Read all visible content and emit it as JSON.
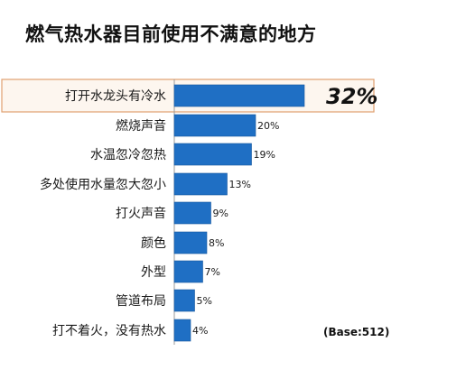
{
  "chart_data": {
    "type": "bar",
    "orientation": "horizontal",
    "title": "燃气热水器目前使用不满意的地方",
    "note": "(Base:512)",
    "categories": [
      "打开水龙头有冷水",
      "燃烧声音",
      "水温忽冷忽热",
      "多处使用水量忽大忽小",
      "打火声音",
      "颜色",
      "外型",
      "管道布局",
      "打不着火，没有热水"
    ],
    "values": [
      32,
      20,
      19,
      13,
      9,
      8,
      7,
      5,
      4
    ],
    "value_labels": [
      "32%",
      "20%",
      "19%",
      "13%",
      "9%",
      "8%",
      "7%",
      "5%",
      "4%"
    ],
    "unit": "%",
    "highlight_index": 0,
    "grid": false
  },
  "colors": {
    "bar": "#1f6fc4",
    "bar_edge": "#16589e",
    "axis": "#9a9a9a",
    "highlight_fill": "#fdf6ef",
    "highlight_border": "#e0a070"
  }
}
